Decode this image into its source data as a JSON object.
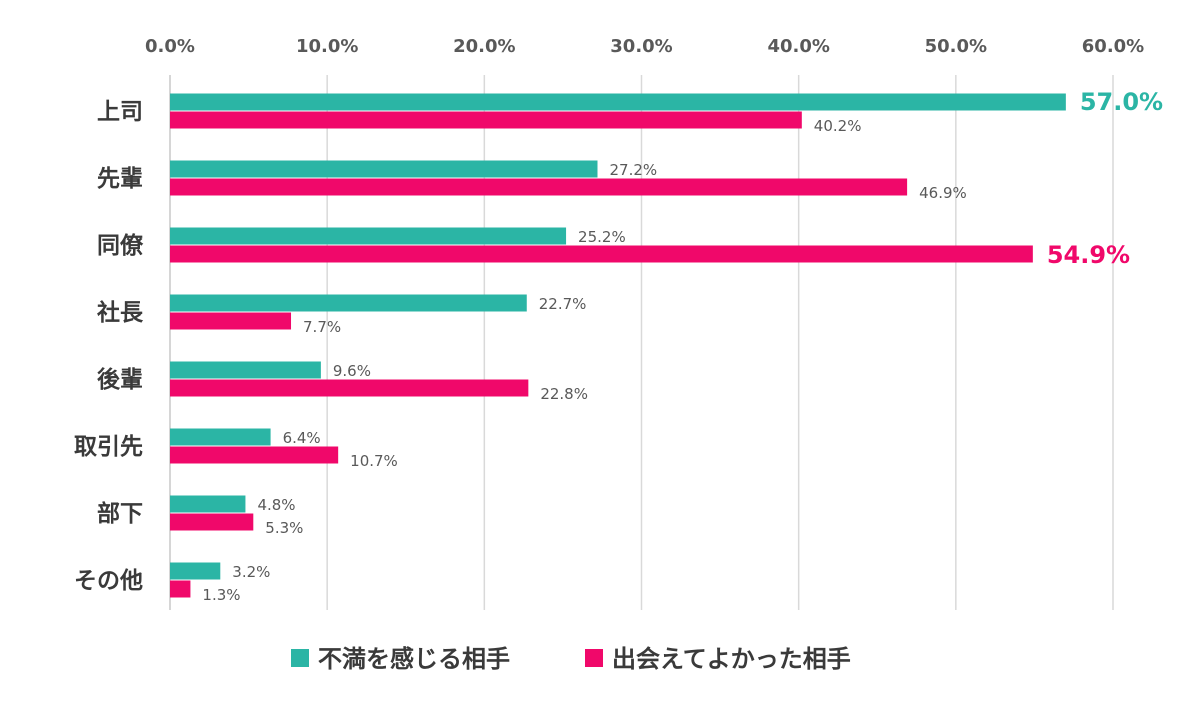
{
  "chart_data": {
    "type": "bar",
    "orientation": "horizontal",
    "categories": [
      "上司",
      "先輩",
      "同僚",
      "社長",
      "後輩",
      "取引先",
      "部下",
      "その他"
    ],
    "series": [
      {
        "name": "不満を感じる相手",
        "color": "#2bb5a5",
        "values": [
          57.0,
          27.2,
          25.2,
          22.7,
          9.6,
          6.4,
          4.8,
          3.2
        ],
        "labels": [
          "57.0%",
          "27.2%",
          "25.2%",
          "22.7%",
          "9.6%",
          "6.4%",
          "4.8%",
          "3.2%"
        ]
      },
      {
        "name": "出会えてよかった相手",
        "color": "#f0086a",
        "values": [
          40.2,
          46.9,
          54.9,
          7.7,
          22.8,
          10.7,
          5.3,
          1.3
        ],
        "labels": [
          "40.2%",
          "46.9%",
          "54.9%",
          "7.7%",
          "22.8%",
          "10.7%",
          "5.3%",
          "1.3%"
        ]
      }
    ],
    "highlights": [
      {
        "series": 0,
        "category": 0
      },
      {
        "series": 1,
        "category": 2
      }
    ],
    "xlim": [
      0,
      60
    ],
    "xticks": [
      "0.0%",
      "10.0%",
      "20.0%",
      "30.0%",
      "40.0%",
      "50.0%",
      "60.0%"
    ],
    "axis_position": "top",
    "grid": true,
    "legend_position": "bottom",
    "title": "",
    "xlabel": "",
    "ylabel": ""
  }
}
